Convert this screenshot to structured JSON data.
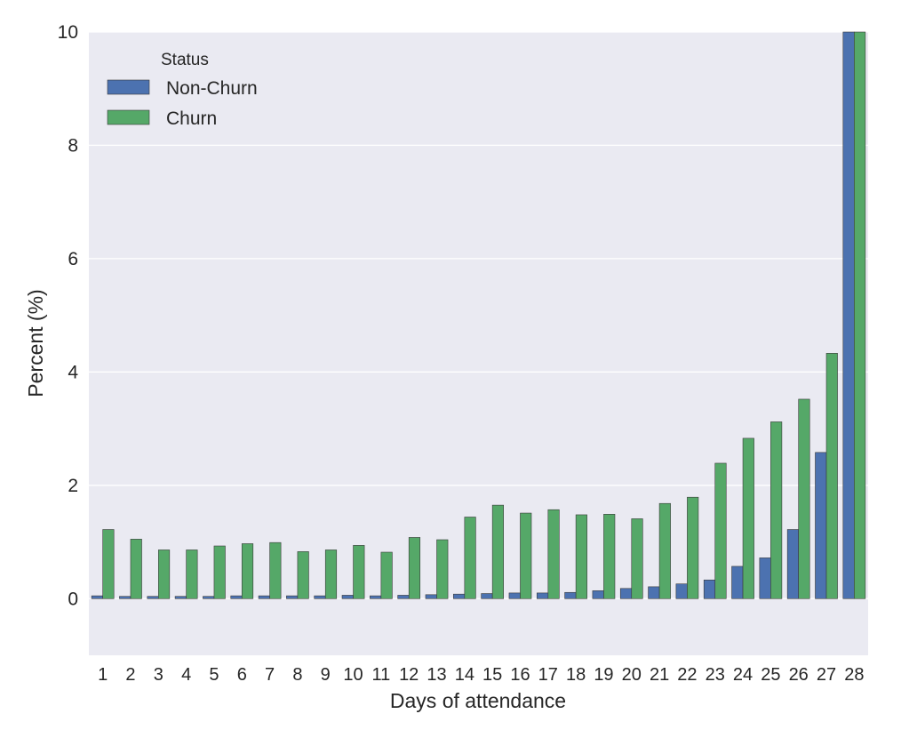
{
  "chart_data": {
    "type": "bar",
    "title": "",
    "xlabel": "Days of attendance",
    "ylabel": "Percent (%)",
    "ylim": [
      -1,
      10
    ],
    "yticks": [
      0,
      2,
      4,
      6,
      8,
      10
    ],
    "grid": true,
    "legend": {
      "title": "Status",
      "placement": "top-left"
    },
    "categories": [
      "1",
      "2",
      "3",
      "4",
      "5",
      "6",
      "7",
      "8",
      "9",
      "10",
      "11",
      "12",
      "13",
      "14",
      "15",
      "16",
      "17",
      "18",
      "19",
      "20",
      "21",
      "22",
      "23",
      "24",
      "25",
      "26",
      "27",
      "28"
    ],
    "series": [
      {
        "name": "Non-Churn",
        "color": "#4c72b0",
        "values": [
          0.05,
          0.04,
          0.04,
          0.04,
          0.04,
          0.05,
          0.05,
          0.05,
          0.05,
          0.06,
          0.05,
          0.06,
          0.07,
          0.08,
          0.09,
          0.1,
          0.1,
          0.11,
          0.14,
          0.18,
          0.21,
          0.26,
          0.33,
          0.57,
          0.72,
          1.22,
          2.58,
          10
        ]
      },
      {
        "name": "Churn",
        "color": "#55a868",
        "values": [
          1.22,
          1.05,
          0.86,
          0.86,
          0.93,
          0.97,
          0.99,
          0.83,
          0.86,
          0.94,
          0.82,
          1.08,
          1.04,
          1.44,
          1.65,
          1.51,
          1.57,
          1.48,
          1.49,
          1.41,
          1.68,
          1.79,
          2.39,
          2.83,
          3.12,
          3.52,
          4.33,
          10
        ]
      }
    ]
  }
}
